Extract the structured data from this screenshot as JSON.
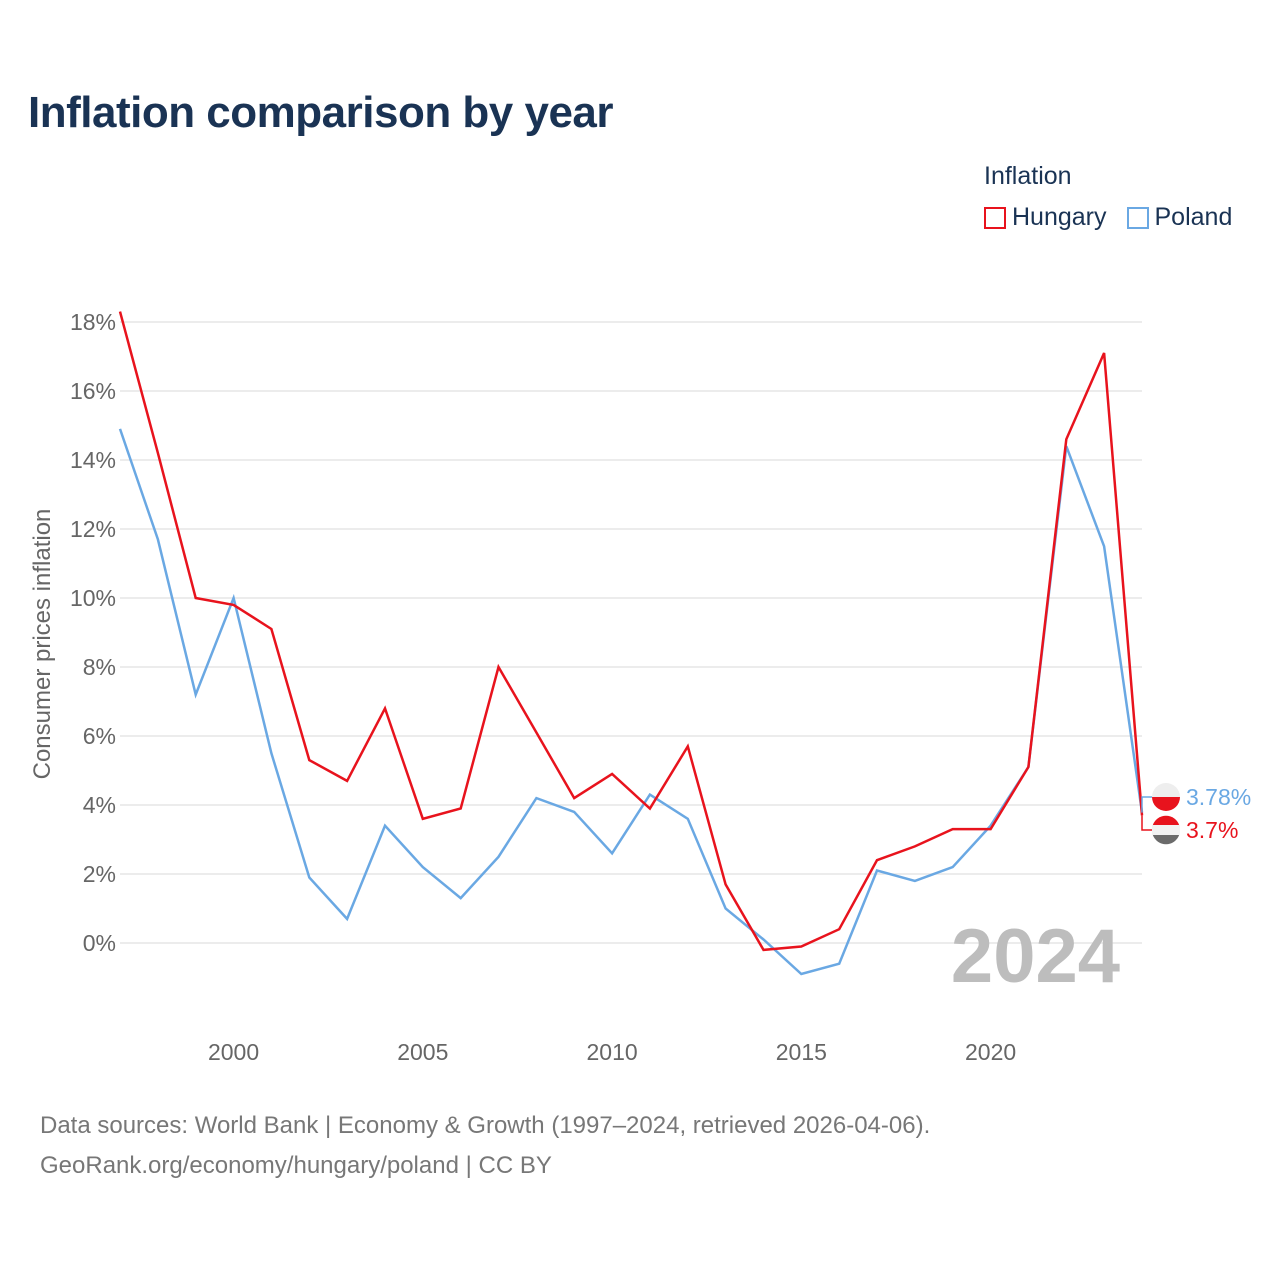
{
  "title": "Inflation comparison by year",
  "legend": {
    "title": "Inflation",
    "items": [
      {
        "label": "Hungary",
        "color": "#e8131d"
      },
      {
        "label": "Poland",
        "color": "#6aa8e3"
      }
    ]
  },
  "year_watermark": "2024",
  "footer": {
    "line1": "Data sources: World Bank | Economy & Growth (1997–2024, retrieved 2026-04-06).",
    "line2": "GeoRank.org/economy/hungary/poland | CC BY"
  },
  "chart_data": {
    "type": "line",
    "title": "Inflation comparison by year",
    "xlabel": "",
    "ylabel": "Consumer prices inflation",
    "x": [
      1997,
      1998,
      1999,
      2000,
      2001,
      2002,
      2003,
      2004,
      2005,
      2006,
      2007,
      2008,
      2009,
      2010,
      2011,
      2012,
      2013,
      2014,
      2015,
      2016,
      2017,
      2018,
      2019,
      2020,
      2021,
      2022,
      2023,
      2024
    ],
    "xlim": [
      1997,
      2024
    ],
    "ylim": [
      -3,
      18
    ],
    "xticks": [
      2000,
      2005,
      2010,
      2015,
      2020
    ],
    "yticks": [
      0,
      2,
      4,
      6,
      8,
      10,
      12,
      14,
      16,
      18
    ],
    "ytick_labels": [
      "0%",
      "2%",
      "4%",
      "6%",
      "8%",
      "10%",
      "12%",
      "14%",
      "16%",
      "18%"
    ],
    "series": [
      {
        "name": "Hungary",
        "color": "#e8131d",
        "values": [
          18.3,
          14.2,
          10.0,
          9.8,
          9.1,
          5.3,
          4.7,
          6.8,
          3.6,
          3.9,
          8.0,
          6.1,
          4.2,
          4.9,
          3.9,
          5.7,
          1.7,
          -0.2,
          -0.1,
          0.4,
          2.4,
          2.8,
          3.3,
          3.3,
          5.1,
          14.6,
          17.1,
          3.7
        ],
        "end_label": "3.7%"
      },
      {
        "name": "Poland",
        "color": "#6aa8e3",
        "values": [
          14.9,
          11.7,
          7.2,
          10.0,
          5.5,
          1.9,
          0.7,
          3.4,
          2.2,
          1.3,
          2.5,
          4.2,
          3.8,
          2.6,
          4.3,
          3.6,
          1.0,
          0.1,
          -0.9,
          -0.6,
          2.1,
          1.8,
          2.2,
          3.4,
          5.1,
          14.4,
          11.5,
          3.78
        ],
        "end_label": "3.78%"
      }
    ],
    "grid": true,
    "legend_position": "top-right"
  }
}
